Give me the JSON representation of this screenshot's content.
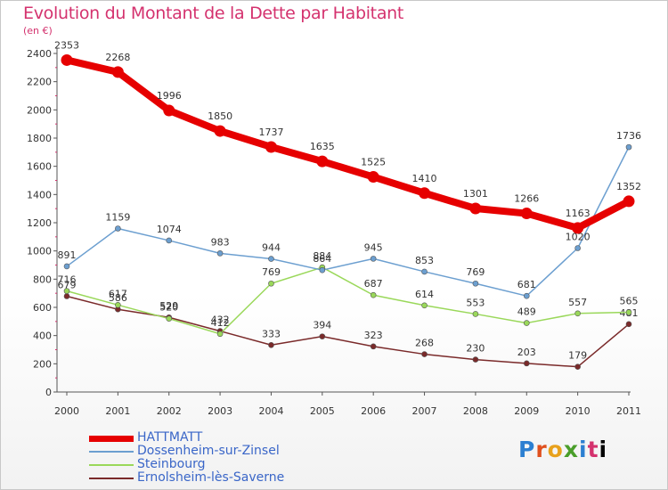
{
  "header": {
    "title": "Evolution du Montant de la Dette par Habitant",
    "unit": "(en €)"
  },
  "logo": {
    "text": "Proxiti"
  },
  "chart_data": {
    "type": "line",
    "title": "Evolution du Montant de la Dette par Habitant",
    "ylabel": "(en €)",
    "xlabel": "",
    "ylim": [
      0,
      2400
    ],
    "yticks": [
      "0",
      "200",
      "400",
      "600",
      "800",
      "1000",
      "1200",
      "1400",
      "1600",
      "1800",
      "2000",
      "2200",
      "2400"
    ],
    "x": [
      "2000",
      "2001",
      "2002",
      "2003",
      "2004",
      "2005",
      "2006",
      "2007",
      "2008",
      "2009",
      "2010",
      "2011"
    ],
    "grid": false,
    "legend": "bottom-left",
    "series": [
      {
        "name": "HATTMATT",
        "color": "#e60000",
        "values": [
          2353,
          2268,
          1996,
          1850,
          1737,
          1635,
          1525,
          1410,
          1301,
          1266,
          1163,
          1352
        ]
      },
      {
        "name": "Dossenheim-sur-Zinsel",
        "color": "#6c9fd0",
        "values": [
          891,
          1159,
          1074,
          983,
          944,
          864,
          945,
          853,
          769,
          681,
          1020,
          1736
        ]
      },
      {
        "name": "Steinbourg",
        "color": "#9ad85a",
        "values": [
          716,
          617,
          520,
          412,
          769,
          884,
          687,
          614,
          553,
          489,
          557,
          565
        ]
      },
      {
        "name": "Ernolsheim-lès-Saverne",
        "color": "#7a2a2a",
        "values": [
          679,
          586,
          529,
          432,
          333,
          394,
          323,
          268,
          230,
          203,
          179,
          481
        ]
      }
    ]
  }
}
